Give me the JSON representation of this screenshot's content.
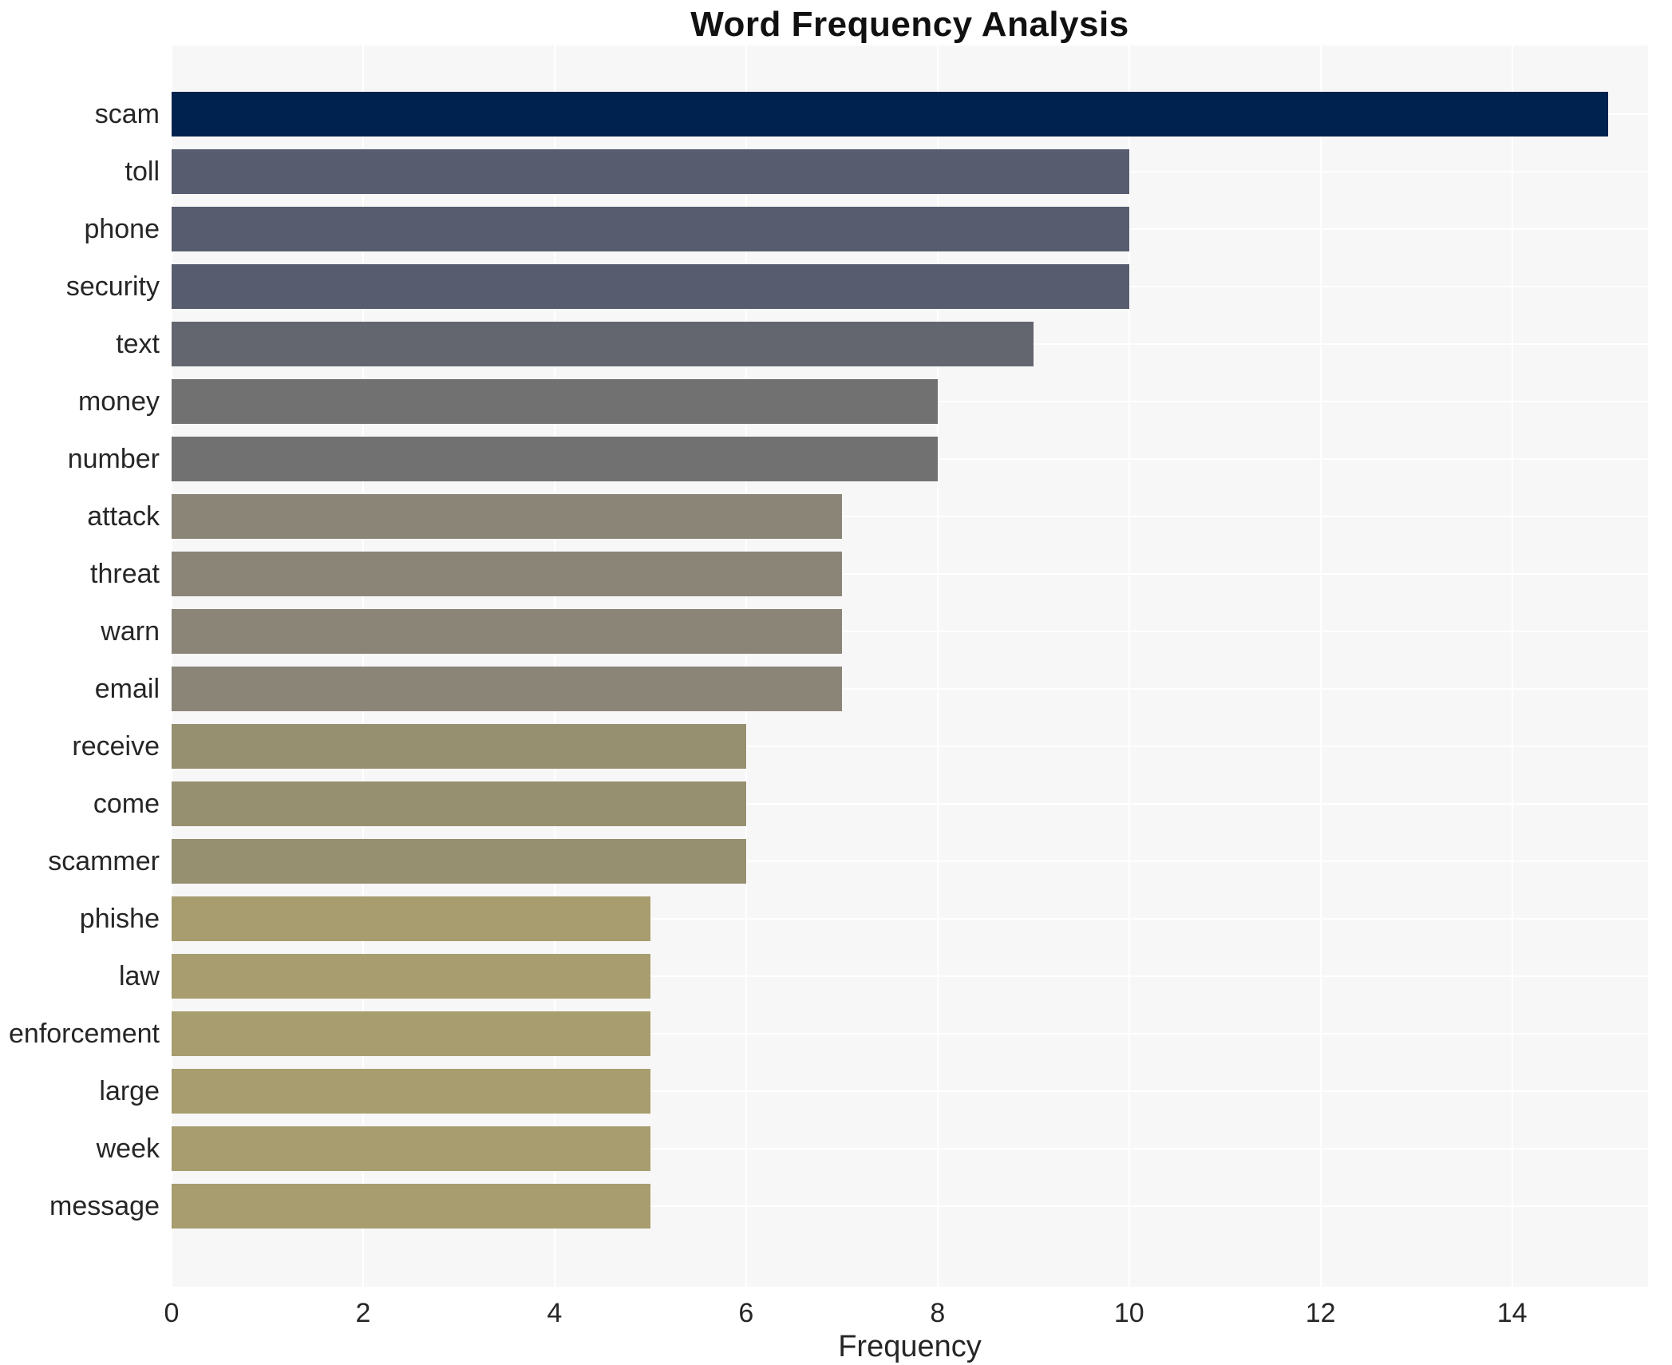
{
  "title": "Word Frequency Analysis",
  "chart_data": {
    "type": "bar",
    "orientation": "horizontal",
    "title": "Word Frequency Analysis",
    "xlabel": "Frequency",
    "ylabel": "",
    "categories": [
      "scam",
      "toll",
      "phone",
      "security",
      "text",
      "money",
      "number",
      "attack",
      "threat",
      "warn",
      "email",
      "receive",
      "come",
      "scammer",
      "phishe",
      "law",
      "enforcement",
      "large",
      "week",
      "message"
    ],
    "values": [
      15,
      10,
      10,
      10,
      9,
      8,
      8,
      7,
      7,
      7,
      7,
      6,
      6,
      6,
      5,
      5,
      5,
      5,
      5,
      5
    ],
    "bar_colors": [
      "#00224e",
      "#575d6e",
      "#575d6e",
      "#575d6e",
      "#63666e",
      "#717171",
      "#717171",
      "#8a8577",
      "#8a8577",
      "#8a8577",
      "#8a8577",
      "#969071",
      "#969071",
      "#969071",
      "#a79d6e",
      "#a79d6e",
      "#a79d6e",
      "#a79d6e",
      "#a79d6e",
      "#a79d6e"
    ],
    "xticks": [
      0,
      2,
      4,
      6,
      8,
      10,
      12,
      14
    ],
    "xlim": [
      0,
      15.42
    ],
    "grid": true,
    "legend_position": "none",
    "plot_background": "#f7f7f7",
    "grid_color": "#ffffff",
    "figure_background": "#ffffff"
  }
}
